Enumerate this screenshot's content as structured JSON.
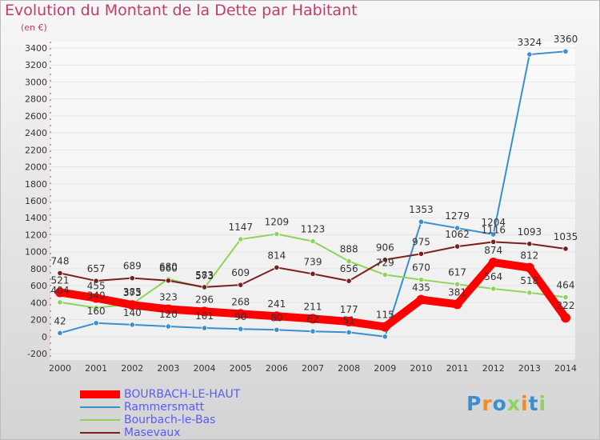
{
  "chart_data": {
    "type": "line",
    "title": "Evolution du Montant de la Dette par Habitant",
    "subtitle": "(en €)",
    "x": [
      "2000",
      "2001",
      "2002",
      "2003",
      "2004",
      "2005",
      "2006",
      "2007",
      "2008",
      "2009",
      "2010",
      "2011",
      "2012",
      "2013",
      "2014"
    ],
    "ylim": [
      -200,
      3400
    ],
    "yticks": [
      -200,
      0,
      200,
      400,
      600,
      800,
      1000,
      1200,
      1400,
      1600,
      1800,
      2000,
      2200,
      2400,
      2600,
      2800,
      3000,
      3200,
      3400
    ],
    "grid": true,
    "legend_position": "bottom-left",
    "series": [
      {
        "name": "Rammersmatt",
        "color": "#3a8fd0",
        "values": [
          42,
          160,
          140,
          120,
          101,
          90,
          80,
          62,
          51,
          0,
          1353,
          1279,
          1204,
          3324,
          3360
        ],
        "labels": [
          "42",
          "160",
          "140",
          "120",
          "101",
          "90",
          "80",
          "62",
          "51",
          "",
          "1353",
          "1279",
          "1204",
          "3324",
          "3360"
        ]
      },
      {
        "name": "Bourbach-le-Bas",
        "color": "#8fd35a",
        "values": [
          404,
          340,
          385,
          680,
          573,
          1147,
          1209,
          1123,
          888,
          729,
          670,
          617,
          564,
          518,
          464
        ],
        "labels": [
          "404",
          "340",
          "385",
          "680",
          "573",
          "1147",
          "1209",
          "1123",
          "888",
          "729",
          "670",
          "617",
          "564",
          "518",
          "464"
        ]
      },
      {
        "name": "Masevaux",
        "color": "#7a1f1f",
        "values": [
          748,
          657,
          689,
          660,
          583,
          609,
          814,
          739,
          656,
          906,
          975,
          1062,
          1116,
          1093,
          1035
        ],
        "labels": [
          "748",
          "657",
          "689",
          "660",
          "583",
          "609",
          "814",
          "739",
          "656",
          "906",
          "975",
          "1062",
          "1116",
          "1093",
          "1035"
        ]
      },
      {
        "name": "BOURBACH-LE-HAUT",
        "color": "#ff0000",
        "values": [
          521,
          455,
          373,
          323,
          296,
          268,
          241,
          211,
          177,
          115,
          435,
          381,
          874,
          812,
          222
        ],
        "labels": [
          "521",
          "455",
          "373",
          "323",
          "296",
          "268",
          "241",
          "211",
          "177",
          "115",
          "435",
          "381",
          "874",
          "812",
          "222"
        ]
      }
    ]
  },
  "legend": [
    {
      "label": "BOURBACH-LE-HAUT",
      "color": "#ff0000",
      "thickness": 10
    },
    {
      "label": "Rammersmatt",
      "color": "#3a8fd0",
      "thickness": 2
    },
    {
      "label": "Bourbach-le-Bas",
      "color": "#8fd35a",
      "thickness": 2
    },
    {
      "label": "Masevaux",
      "color": "#7a1f1f",
      "thickness": 2
    }
  ],
  "logo": {
    "text": "Proxiti",
    "letter_colors": [
      "#3a8fd0",
      "#f58a1f",
      "#3a8fd0",
      "#8fd35a",
      "#f58a1f",
      "#3a8fd0",
      "#8fd35a"
    ]
  }
}
